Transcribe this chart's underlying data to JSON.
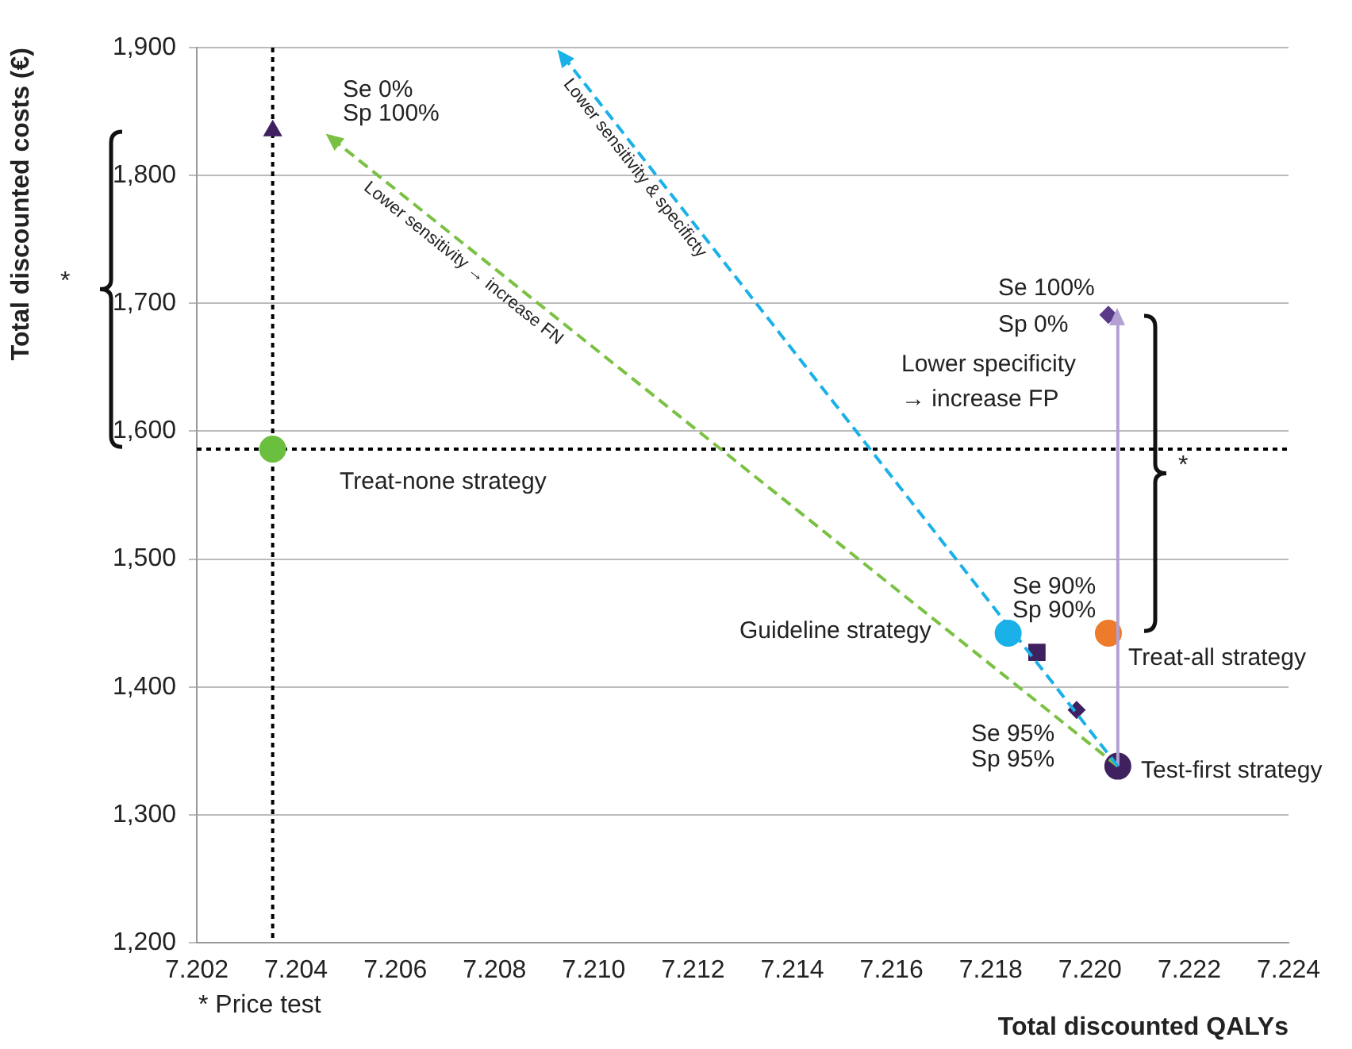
{
  "chart_data": {
    "type": "scatter",
    "xlabel": "Total discounted QALYs",
    "ylabel": "Total discounted costs (€)",
    "xlim": [
      7.202,
      7.224
    ],
    "ylim": [
      1200,
      1900
    ],
    "xticks": [
      7.202,
      7.204,
      7.206,
      7.208,
      {
        "value": 7.21,
        "label": "7.210"
      },
      7.212,
      7.214,
      7.216,
      7.218,
      {
        "value": 7.22,
        "label": "7.220"
      },
      7.222,
      7.224
    ],
    "yticks": [
      {
        "value": 1200,
        "label": "1,200"
      },
      {
        "value": 1300,
        "label": "1,300"
      },
      {
        "value": 1400,
        "label": "1,400"
      },
      {
        "value": 1500,
        "label": "1,500"
      },
      {
        "value": 1600,
        "label": "1,600"
      },
      {
        "value": 1700,
        "label": "1,700"
      },
      {
        "value": 1800,
        "label": "1,800"
      },
      {
        "value": 1900,
        "label": "1,900"
      }
    ],
    "grid": "y",
    "legend": false,
    "series": [
      {
        "type": "line",
        "line_style": "dashed",
        "color": "#1ab0e8",
        "x": [
          7.22056,
          7.20939
        ],
        "values": [
          1338,
          1893
        ]
      },
      {
        "type": "line",
        "line_style": "dashed",
        "color": "#7ac143",
        "x": [
          7.22056,
          7.20475
        ],
        "values": [
          1338,
          1828
        ]
      },
      {
        "type": "line",
        "line_style": "solid",
        "color": "#b3a2d1",
        "x": [
          7.22056,
          7.22056
        ],
        "values": [
          1338,
          1689
        ]
      },
      {
        "marker": "triangle",
        "color": "#40215f",
        "x": [
          7.20353
        ],
        "values": [
          1835
        ]
      },
      {
        "marker": "circle",
        "color": "#6bbf3e",
        "x": [
          7.20353
        ],
        "values": [
          1586
        ]
      },
      {
        "marker": "circle",
        "color": "#1ab0e8",
        "x": [
          7.21835
        ],
        "values": [
          1442
        ]
      },
      {
        "marker": "square",
        "color": "#40215f",
        "x": [
          7.21893
        ],
        "values": [
          1427
        ]
      },
      {
        "marker": "diamond",
        "color": "#40215f",
        "x": [
          7.21973
        ],
        "values": [
          1382
        ]
      },
      {
        "marker": "circle",
        "color": "#40215f",
        "x": [
          7.22056
        ],
        "values": [
          1338
        ]
      },
      {
        "marker": "circle",
        "color": "#ee7a2b",
        "x": [
          7.22037
        ],
        "values": [
          1442
        ]
      },
      {
        "marker": "diamond",
        "color": "#5b3a8a",
        "x": [
          7.22037
        ],
        "values": [
          1691
        ]
      }
    ],
    "ref_lines": [
      {
        "axis": "x",
        "value": 7.20353,
        "line_style": "dotted",
        "color": "#000000"
      },
      {
        "axis": "y",
        "value": 1586,
        "line_style": "dotted",
        "color": "#000000"
      }
    ],
    "annotations": [
      "Se 0%",
      "Sp 100%",
      "Treat-none strategy",
      "Se 100%",
      "Sp 0%",
      "Lower specificity",
      "→ increase FP",
      "Se 90%",
      "Sp 90%",
      "Guideline strategy",
      "Treat-all strategy",
      "Se 95%",
      "Sp 95%",
      "Test-first strategy",
      "Lower sensitivity & specificty",
      "Lower sensitivity → increase FN",
      "*",
      "*",
      "* Price test"
    ]
  }
}
